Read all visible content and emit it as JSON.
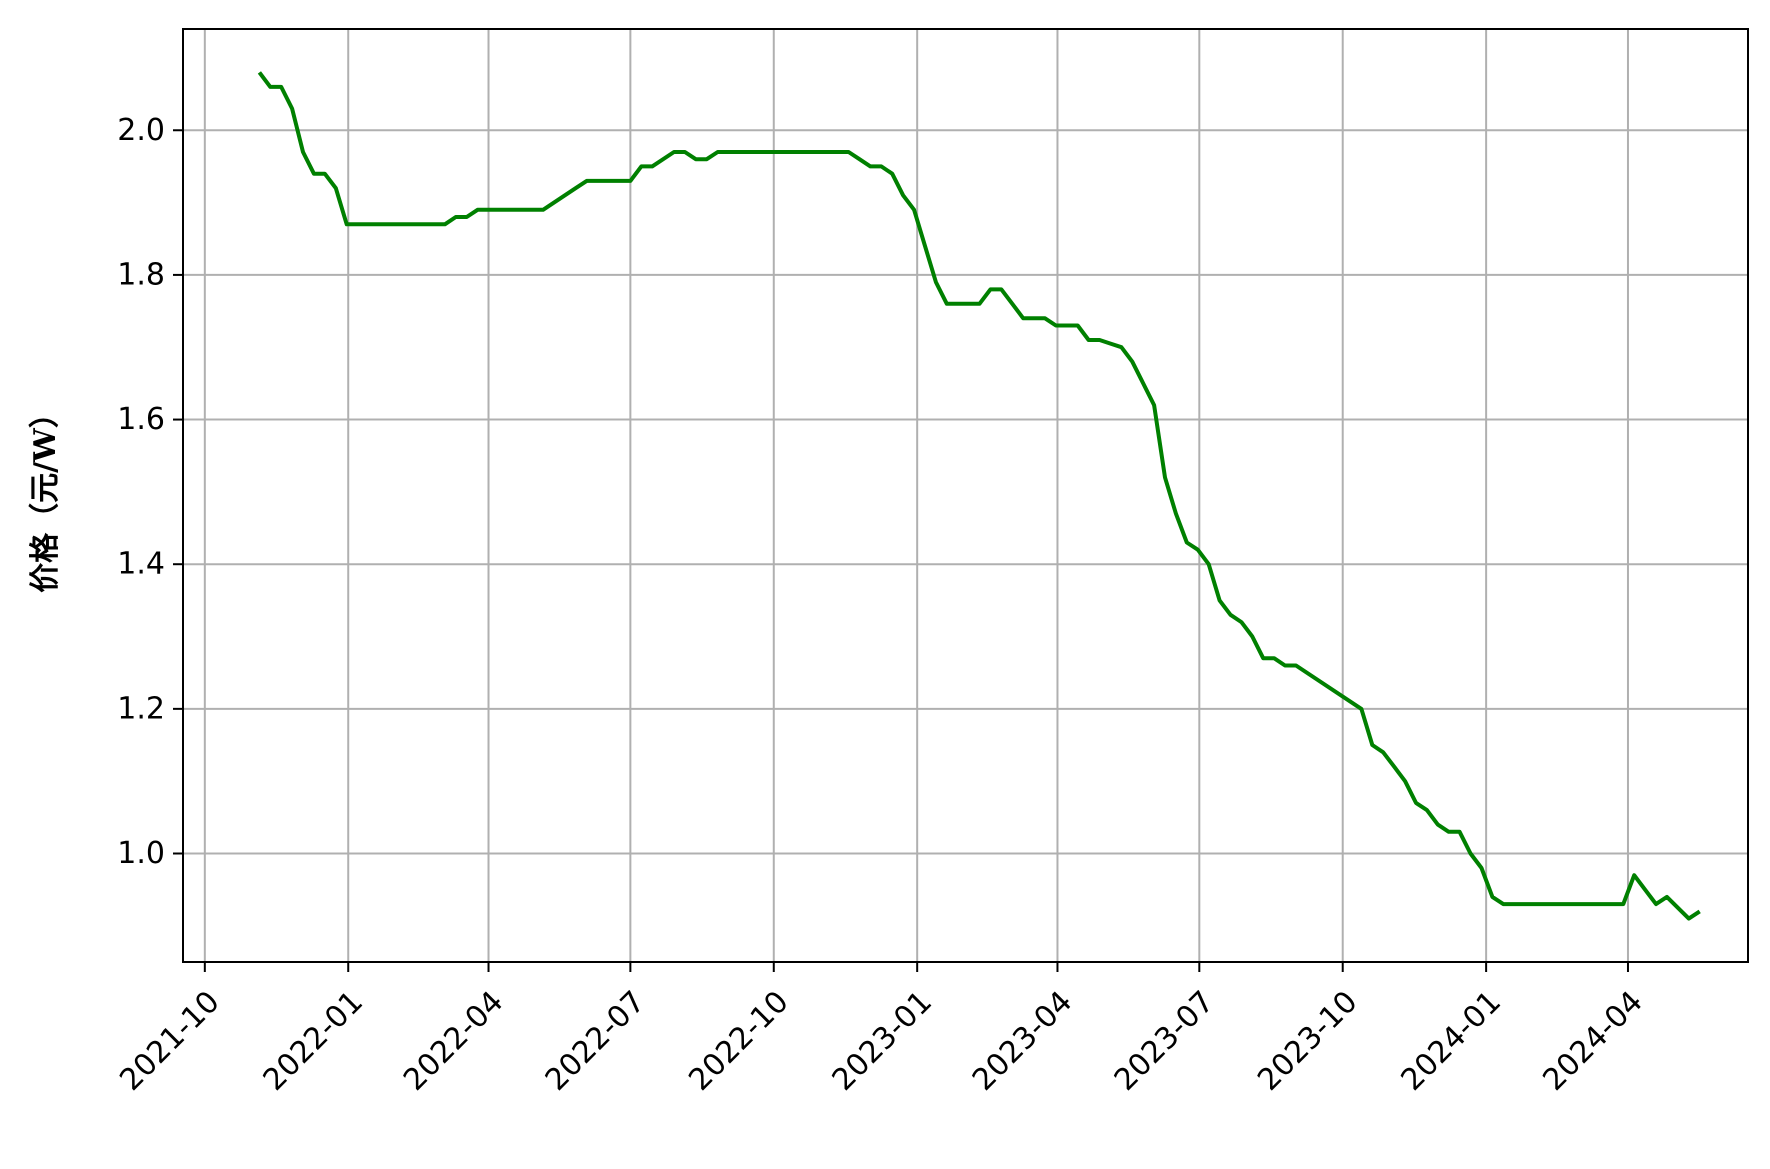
{
  "chart_data": {
    "type": "line",
    "ylabel": "价格（元/W）",
    "xlabel": "",
    "title": "",
    "grid": true,
    "xlim": [
      "2021-09-17",
      "2024-06-17"
    ],
    "ylim": [
      0.85,
      2.14
    ],
    "x_ticks": [
      "2021-10",
      "2022-01",
      "2022-04",
      "2022-07",
      "2022-10",
      "2023-01",
      "2023-04",
      "2023-07",
      "2023-10",
      "2024-01",
      "2024-04"
    ],
    "y_ticks": [
      "1.0",
      "1.2",
      "1.4",
      "1.6",
      "1.8",
      "2.0"
    ],
    "series": [
      {
        "color": "#008000",
        "points": [
          [
            "2021-11-05",
            2.08
          ],
          [
            "2021-11-12",
            2.06
          ],
          [
            "2021-11-19",
            2.06
          ],
          [
            "2021-11-26",
            2.03
          ],
          [
            "2021-12-03",
            1.97
          ],
          [
            "2021-12-10",
            1.94
          ],
          [
            "2021-12-17",
            1.94
          ],
          [
            "2021-12-24",
            1.92
          ],
          [
            "2021-12-31",
            1.87
          ],
          [
            "2022-01-07",
            1.87
          ],
          [
            "2022-01-14",
            1.87
          ],
          [
            "2022-01-21",
            1.87
          ],
          [
            "2022-02-11",
            1.87
          ],
          [
            "2022-03-04",
            1.87
          ],
          [
            "2022-03-11",
            1.88
          ],
          [
            "2022-03-18",
            1.88
          ],
          [
            "2022-03-25",
            1.89
          ],
          [
            "2022-04-01",
            1.89
          ],
          [
            "2022-04-22",
            1.89
          ],
          [
            "2022-05-06",
            1.89
          ],
          [
            "2022-05-13",
            1.9
          ],
          [
            "2022-05-27",
            1.92
          ],
          [
            "2022-06-03",
            1.93
          ],
          [
            "2022-06-17",
            1.93
          ],
          [
            "2022-07-01",
            1.93
          ],
          [
            "2022-07-08",
            1.95
          ],
          [
            "2022-07-15",
            1.95
          ],
          [
            "2022-07-29",
            1.97
          ],
          [
            "2022-08-05",
            1.97
          ],
          [
            "2022-08-12",
            1.96
          ],
          [
            "2022-08-19",
            1.96
          ],
          [
            "2022-08-26",
            1.97
          ],
          [
            "2022-09-09",
            1.97
          ],
          [
            "2022-10-14",
            1.97
          ],
          [
            "2022-11-18",
            1.97
          ],
          [
            "2022-11-25",
            1.96
          ],
          [
            "2022-12-02",
            1.95
          ],
          [
            "2022-12-09",
            1.95
          ],
          [
            "2022-12-16",
            1.94
          ],
          [
            "2022-12-23",
            1.91
          ],
          [
            "2022-12-30",
            1.89
          ],
          [
            "2023-01-06",
            1.84
          ],
          [
            "2023-01-13",
            1.79
          ],
          [
            "2023-01-20",
            1.76
          ],
          [
            "2023-01-27",
            1.76
          ],
          [
            "2023-02-03",
            1.76
          ],
          [
            "2023-02-10",
            1.76
          ],
          [
            "2023-02-17",
            1.78
          ],
          [
            "2023-02-24",
            1.78
          ],
          [
            "2023-03-03",
            1.76
          ],
          [
            "2023-03-10",
            1.74
          ],
          [
            "2023-03-17",
            1.74
          ],
          [
            "2023-03-24",
            1.74
          ],
          [
            "2023-03-31",
            1.73
          ],
          [
            "2023-04-07",
            1.73
          ],
          [
            "2023-04-14",
            1.73
          ],
          [
            "2023-04-21",
            1.71
          ],
          [
            "2023-04-28",
            1.71
          ],
          [
            "2023-05-05",
            1.705
          ],
          [
            "2023-05-12",
            1.7
          ],
          [
            "2023-05-19",
            1.68
          ],
          [
            "2023-05-26",
            1.65
          ],
          [
            "2023-06-02",
            1.62
          ],
          [
            "2023-06-09",
            1.52
          ],
          [
            "2023-06-16",
            1.47
          ],
          [
            "2023-06-23",
            1.43
          ],
          [
            "2023-06-30",
            1.42
          ],
          [
            "2023-07-07",
            1.4
          ],
          [
            "2023-07-14",
            1.35
          ],
          [
            "2023-07-21",
            1.33
          ],
          [
            "2023-07-28",
            1.32
          ],
          [
            "2023-08-04",
            1.3
          ],
          [
            "2023-08-11",
            1.27
          ],
          [
            "2023-08-18",
            1.27
          ],
          [
            "2023-08-25",
            1.26
          ],
          [
            "2023-09-01",
            1.26
          ],
          [
            "2023-10-13",
            1.2
          ],
          [
            "2023-10-20",
            1.15
          ],
          [
            "2023-10-27",
            1.14
          ],
          [
            "2023-11-03",
            1.12
          ],
          [
            "2023-11-10",
            1.1
          ],
          [
            "2023-11-17",
            1.07
          ],
          [
            "2023-11-24",
            1.06
          ],
          [
            "2023-12-01",
            1.04
          ],
          [
            "2023-12-08",
            1.03
          ],
          [
            "2023-12-15",
            1.03
          ],
          [
            "2023-12-22",
            1.0
          ],
          [
            "2023-12-29",
            0.98
          ],
          [
            "2024-01-05",
            0.94
          ],
          [
            "2024-01-12",
            0.93
          ],
          [
            "2024-01-19",
            0.93
          ],
          [
            "2024-03-29",
            0.93
          ],
          [
            "2024-04-05",
            0.97
          ],
          [
            "2024-04-12",
            0.95
          ],
          [
            "2024-04-19",
            0.93
          ],
          [
            "2024-04-26",
            0.94
          ],
          [
            "2024-05-03",
            0.925
          ],
          [
            "2024-05-10",
            0.91
          ],
          [
            "2024-05-17",
            0.92
          ]
        ]
      }
    ]
  }
}
